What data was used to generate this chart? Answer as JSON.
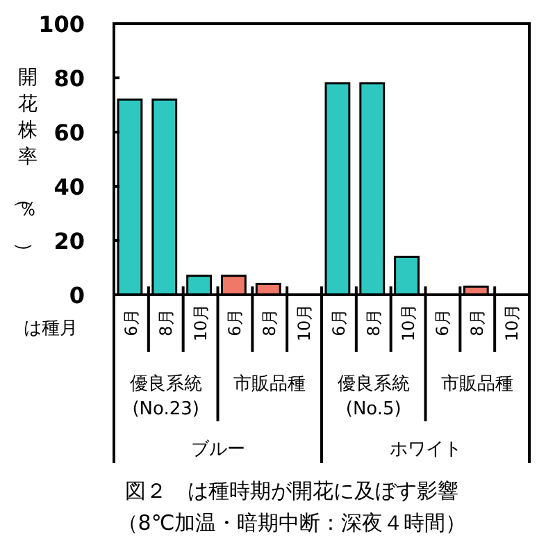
{
  "chart_data": {
    "type": "bar",
    "title": "図２　は種時期が開花に及ぼす影響",
    "subtitle": "（8℃加温・暗期中断：深夜４時間）",
    "ylabel": "開花株率（％）",
    "xlabel": "は種月",
    "categories": [
      "6月",
      "8月",
      "10月",
      "6月",
      "8月",
      "10月",
      "6月",
      "8月",
      "10月",
      "6月",
      "8月",
      "10月"
    ],
    "values": [
      72,
      72,
      7,
      7,
      4,
      0,
      78,
      78,
      14,
      0,
      3,
      0
    ],
    "colors": [
      "#2ec8c0",
      "#2ec8c0",
      "#2ec8c0",
      "#f07868",
      "#f07868",
      "#f07868",
      "#2ec8c0",
      "#2ec8c0",
      "#2ec8c0",
      "#f07868",
      "#f07868",
      "#f07868"
    ],
    "ylim": [
      0,
      100
    ],
    "yticks": [
      0,
      20,
      40,
      60,
      80,
      100
    ],
    "grid": false,
    "annotations": [
      {
        "text": "優良系統\n(No.23)"
      },
      {
        "text": "市販品種"
      },
      {
        "text": "優良系統\n(No.5)"
      },
      {
        "text": "市販品種"
      },
      {
        "text": "ブルー"
      },
      {
        "text": "ホワイト"
      }
    ]
  }
}
